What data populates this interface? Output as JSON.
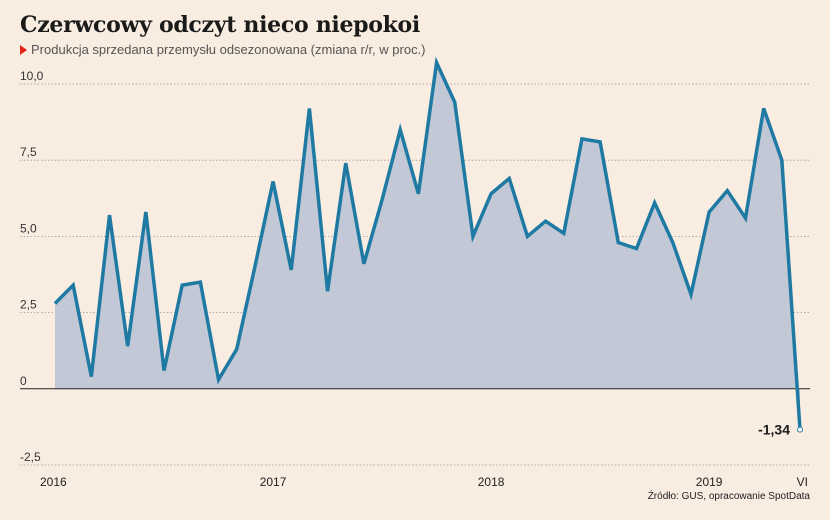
{
  "title": "Czerwcowy odczyt nieco niepokoi",
  "subtitle": "Produkcja sprzedana przemysłu odsezonowana (zmiana r/r, w proc.)",
  "source": "Źródło: GUS, opracowanie SpotData",
  "colors": {
    "line": "#1f7aa3",
    "area": "#c3c8d6",
    "grid": "#999999",
    "background": "#f9ece0",
    "marker": "#e2231a"
  },
  "chart_data": {
    "type": "area",
    "x_start": "2016-01",
    "x_end": "2019-06",
    "ylim": [
      -2.5,
      10.0
    ],
    "yticks": [
      {
        "value": 10.0,
        "label": "10,0"
      },
      {
        "value": 7.5,
        "label": "7,5"
      },
      {
        "value": 5.0,
        "label": "5,0"
      },
      {
        "value": 2.5,
        "label": "2,5"
      },
      {
        "value": 0,
        "label": "0"
      },
      {
        "value": -2.5,
        "label": "-2,5"
      }
    ],
    "xticks": [
      {
        "index": 0,
        "label": "2016"
      },
      {
        "index": 12,
        "label": "2017"
      },
      {
        "index": 24,
        "label": "2018"
      },
      {
        "index": 36,
        "label": "2019"
      },
      {
        "index": 41,
        "label": "VI"
      }
    ],
    "grid": true,
    "values": [
      2.8,
      3.4,
      0.4,
      5.7,
      1.4,
      5.8,
      0.6,
      3.4,
      3.5,
      0.3,
      1.3,
      4.0,
      6.8,
      3.9,
      9.2,
      3.2,
      7.4,
      4.1,
      6.2,
      8.5,
      6.4,
      10.7,
      9.4,
      5.0,
      6.4,
      6.9,
      5.0,
      5.5,
      5.1,
      8.2,
      8.1,
      4.8,
      4.6,
      6.1,
      4.8,
      3.1,
      5.8,
      6.5,
      5.6,
      9.2,
      7.5,
      -1.34
    ],
    "end_label": "-1,34"
  }
}
